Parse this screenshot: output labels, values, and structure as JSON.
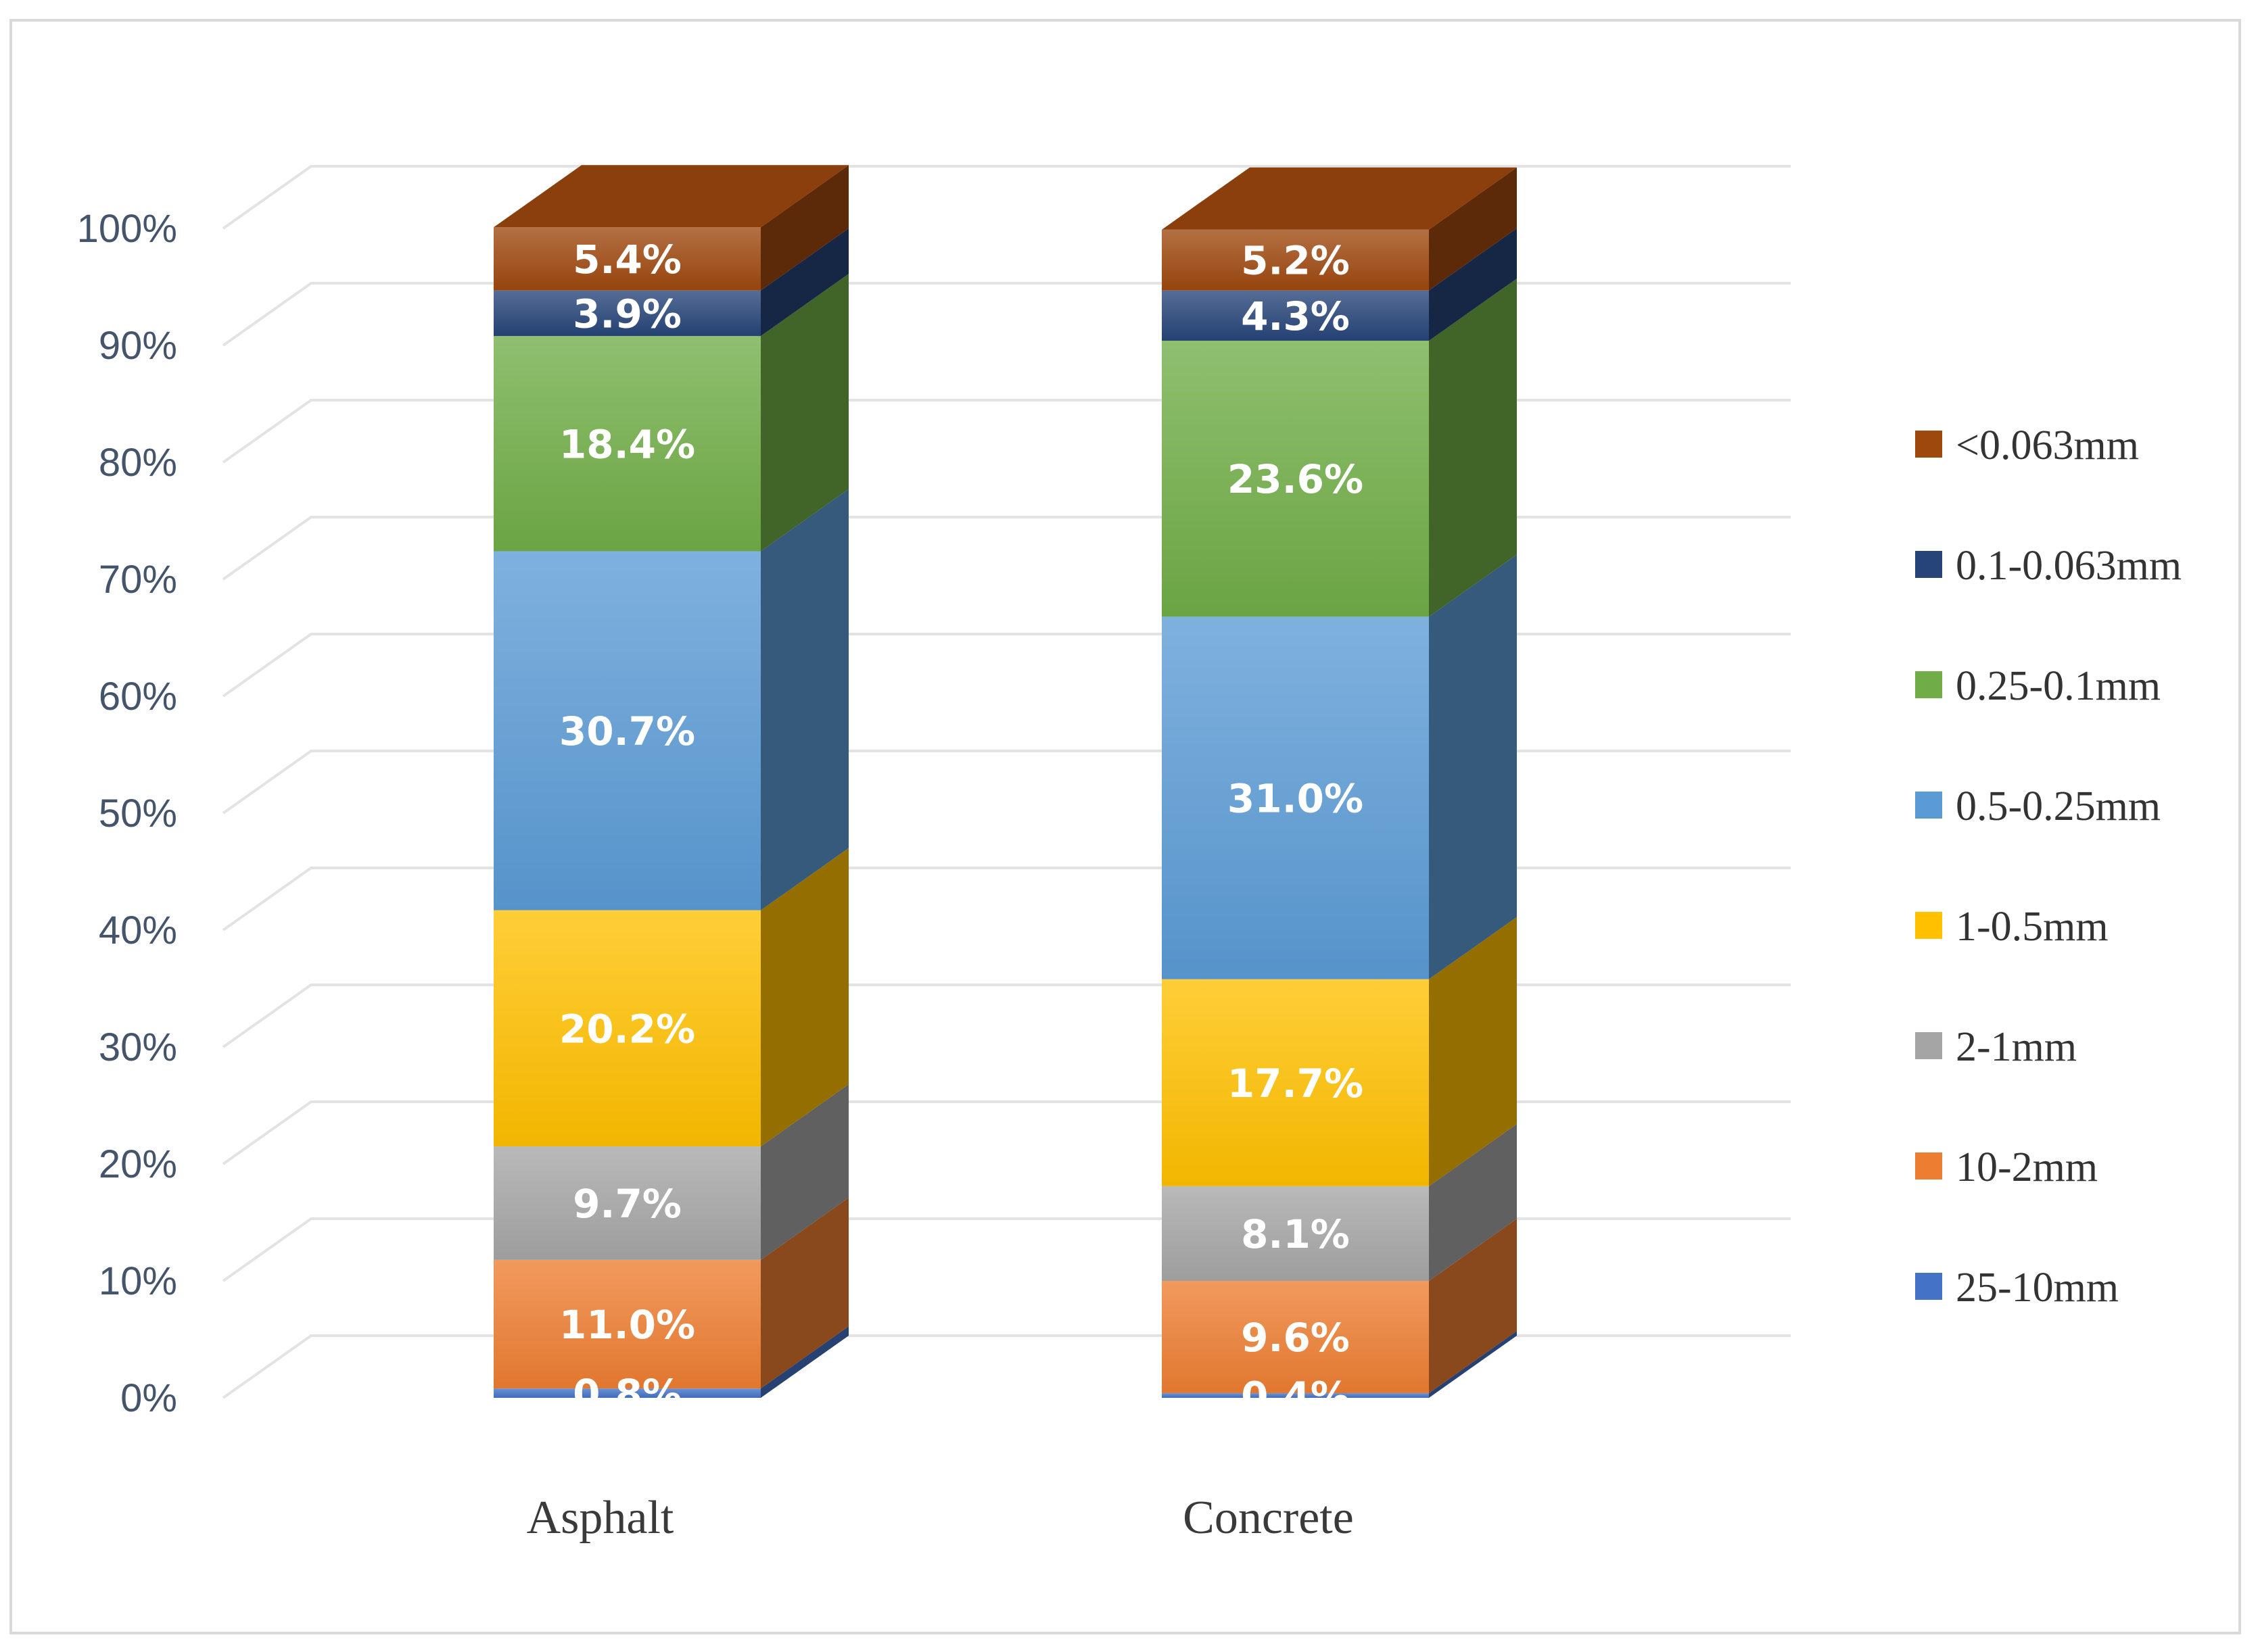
{
  "chart_data": {
    "type": "bar",
    "stacked": true,
    "three_d": true,
    "title": "",
    "xlabel": "",
    "ylabel": "",
    "categories": [
      "Asphalt",
      "Concrete"
    ],
    "ylim": [
      0,
      100
    ],
    "y_ticks": [
      "0%",
      "10%",
      "20%",
      "30%",
      "40%",
      "50%",
      "60%",
      "70%",
      "80%",
      "90%",
      "100%"
    ],
    "grid": true,
    "legend_position": "right",
    "series": [
      {
        "name": "25-10mm",
        "values": [
          0.8,
          0.4
        ],
        "labels": [
          "0.8%",
          "0.4%"
        ],
        "color": "#4472c4"
      },
      {
        "name": "10-2mm",
        "values": [
          11.0,
          9.6
        ],
        "labels": [
          "11.0%",
          "9.6%"
        ],
        "color": "#ed7d31"
      },
      {
        "name": "2-1mm",
        "values": [
          9.7,
          8.1
        ],
        "labels": [
          "9.7%",
          "8.1%"
        ],
        "color": "#a5a5a5"
      },
      {
        "name": "1-0.5mm",
        "values": [
          20.2,
          17.7
        ],
        "labels": [
          "20.2%",
          "17.7%"
        ],
        "color": "#ffc000"
      },
      {
        "name": "0.5-0.25mm",
        "values": [
          30.7,
          31.0
        ],
        "labels": [
          "30.7%",
          "31.0%"
        ],
        "color": "#5b9bd5"
      },
      {
        "name": "0.25-0.1mm",
        "values": [
          18.4,
          23.6
        ],
        "labels": [
          "18.4%",
          "23.6%"
        ],
        "color": "#70ad47"
      },
      {
        "name": "0.1-0.063mm",
        "values": [
          3.9,
          4.3
        ],
        "labels": [
          "3.9%",
          "4.3%"
        ],
        "color": "#264478"
      },
      {
        "name": "<0.063mm",
        "values": [
          5.4,
          5.2
        ],
        "labels": [
          "5.4%",
          "5.2%"
        ],
        "color": "#9e480e"
      }
    ]
  }
}
